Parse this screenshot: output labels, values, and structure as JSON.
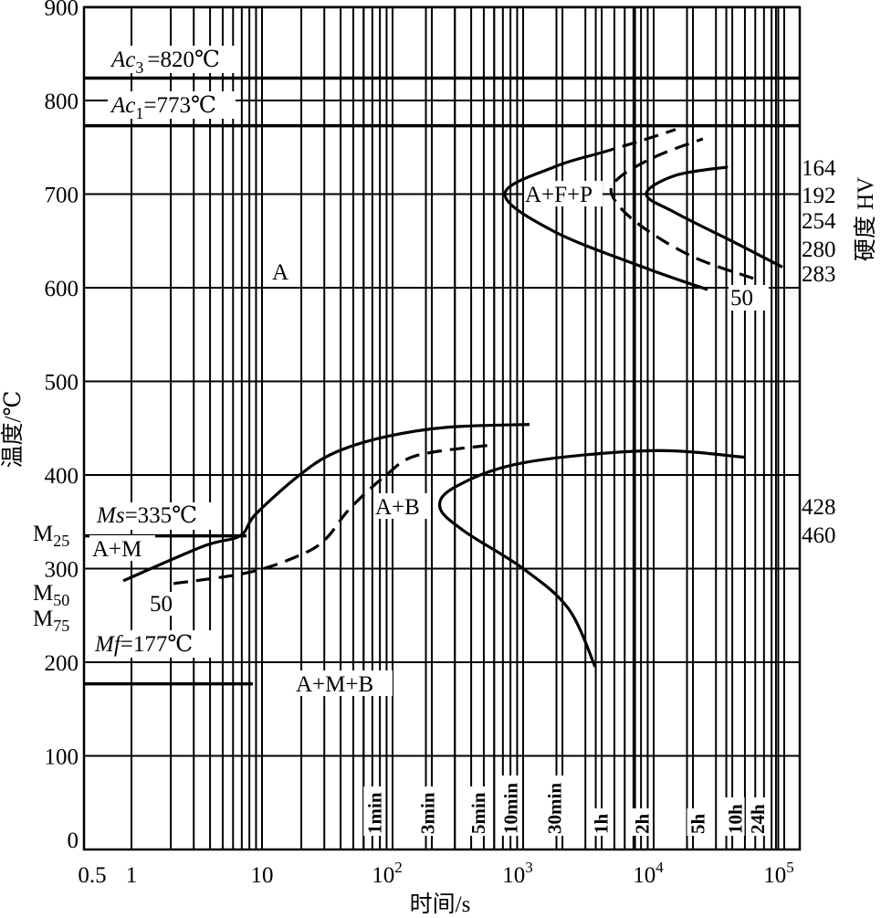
{
  "chart_data": {
    "type": "line",
    "title": "",
    "xlabel": "时间/s",
    "ylabel": "温度/℃",
    "y2label": "硬度 HV",
    "xscale": "log",
    "xlim": [
      0.43,
      130000
    ],
    "ylim": [
      0,
      900
    ],
    "grid": true,
    "y_ticks": [
      "0",
      "100",
      "200",
      "300",
      "400",
      "500",
      "600",
      "700",
      "800",
      "900"
    ],
    "x_ticks": [
      {
        "value": 0.5,
        "base": "0.5",
        "exp": ""
      },
      {
        "value": 1,
        "base": "1",
        "exp": ""
      },
      {
        "value": 10,
        "base": "10",
        "exp": ""
      },
      {
        "value": 100,
        "base": "10",
        "exp": "2"
      },
      {
        "value": 1000,
        "base": "10",
        "exp": "3"
      },
      {
        "value": 10000,
        "base": "10",
        "exp": "4"
      },
      {
        "value": 100000,
        "base": "10",
        "exp": "5"
      }
    ],
    "time_marks": [
      {
        "label": "1min",
        "value": 60
      },
      {
        "label": "3min",
        "value": 180
      },
      {
        "label": "5min",
        "value": 300
      },
      {
        "label": "10min",
        "value": 600
      },
      {
        "label": "30min",
        "value": 1800
      },
      {
        "label": "1h",
        "value": 3600
      },
      {
        "label": "2h",
        "value": 7200
      },
      {
        "label": "5h",
        "value": 18000
      },
      {
        "label": "10h",
        "value": 36000
      },
      {
        "label": "24h",
        "value": 86400
      }
    ],
    "reference_lines": [
      {
        "name": "Ac3",
        "main": "Ac",
        "sub": "3",
        "rest": "=820℃",
        "value": 820,
        "t_end": 130000
      },
      {
        "name": "Ac1",
        "main": "Ac",
        "sub": "1",
        "rest": "=773℃",
        "value": 773,
        "t_end": 130000
      },
      {
        "name": "Ms",
        "main": "Ms",
        "sub": "",
        "rest": "=335℃",
        "value": 335,
        "t_end": 7.6
      },
      {
        "name": "Mf",
        "main": "Mf",
        "sub": "",
        "rest": "=177℃",
        "value": 177,
        "t_end": 8.5
      }
    ],
    "series": [
      {
        "name": "pearlite-start",
        "style": "solid",
        "points": [
          [
            25900,
            598
          ],
          [
            8700,
            621
          ],
          [
            1730,
            660
          ],
          [
            724,
            700
          ],
          [
            1730,
            729
          ],
          [
            3920,
            744
          ]
        ]
      },
      {
        "name": "pearlite-start-extension",
        "style": "dashed",
        "points": [
          [
            3920,
            744
          ],
          [
            8000,
            757
          ],
          [
            14700,
            769
          ]
        ]
      },
      {
        "name": "pearlite-50",
        "style": "dashed",
        "points": [
          [
            57900,
            610
          ],
          [
            19300,
            634
          ],
          [
            7330,
            670
          ],
          [
            4770,
            700
          ],
          [
            5600,
            719
          ],
          [
            10700,
            741
          ],
          [
            23800,
            759
          ]
        ]
      },
      {
        "name": "pearlite-finish",
        "style": "solid",
        "points": [
          [
            97000,
            622
          ],
          [
            43500,
            647
          ],
          [
            14700,
            680
          ],
          [
            8780,
            700
          ],
          [
            14700,
            720
          ],
          [
            37000,
            729
          ]
        ]
      },
      {
        "name": "bainite-start",
        "style": "solid",
        "points": [
          [
            0.865,
            287
          ],
          [
            3.57,
            324
          ],
          [
            6.79,
            335
          ],
          [
            8.93,
            358
          ],
          [
            19.4,
            400
          ],
          [
            36.3,
            424
          ],
          [
            89.4,
            441
          ],
          [
            263,
            451
          ],
          [
            1120,
            454
          ]
        ]
      },
      {
        "name": "bainite-50",
        "style": "dashed",
        "points": [
          [
            2.1,
            284
          ],
          [
            7.98,
            296
          ],
          [
            20,
            315
          ],
          [
            30.9,
            332
          ],
          [
            47,
            364
          ],
          [
            89.4,
            400
          ],
          [
            155,
            421
          ],
          [
            569,
            432
          ]
        ]
      },
      {
        "name": "bainite-finish",
        "style": "solid",
        "points": [
          [
            49400,
            419
          ],
          [
            9520,
            426
          ],
          [
            1000,
            413
          ],
          [
            309,
            388
          ],
          [
            230,
            366
          ],
          [
            346,
            341
          ],
          [
            1000,
            300
          ],
          [
            2230,
            257
          ],
          [
            3570,
            195
          ]
        ]
      }
    ],
    "region_labels": {
      "austenite": "A",
      "afp": "A+F+P",
      "ab": "A+B",
      "am": "A+M",
      "amb": "A+M+B"
    },
    "martensite_labels": [
      {
        "main": "M",
        "sub": "25"
      },
      {
        "main": "M",
        "sub": "50"
      },
      {
        "main": "M",
        "sub": "75"
      }
    ],
    "percent_labels": [
      "50",
      "50"
    ],
    "hardness_values": [
      "164",
      "192",
      "254",
      "280",
      "283",
      "428",
      "460"
    ]
  }
}
